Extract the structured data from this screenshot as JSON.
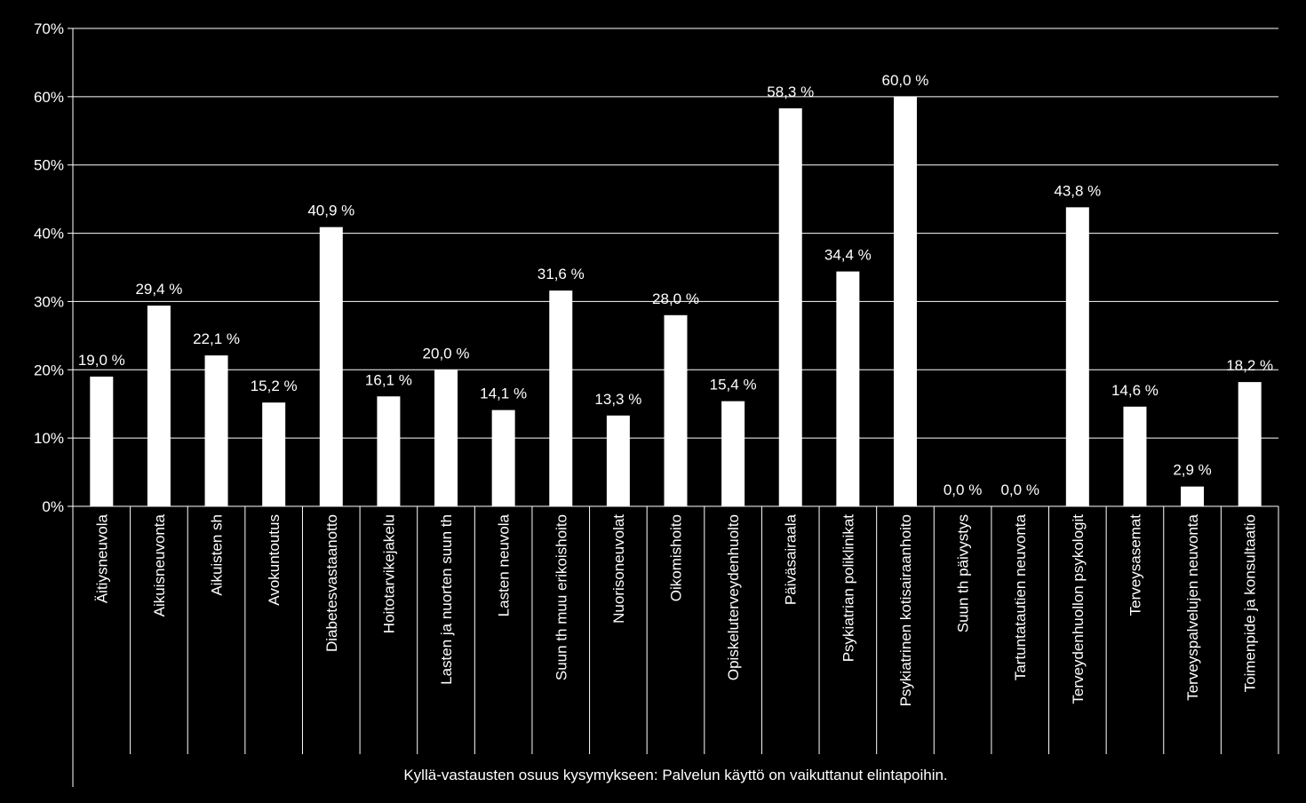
{
  "chart_data": {
    "type": "bar",
    "title": "",
    "ylabel": "",
    "xlabel": "Kyllä-vastausten osuus kysymykseen: Palvelun käyttö on vaikuttanut elintapoihin.",
    "ylim": [
      0,
      70
    ],
    "ytick_step": 10,
    "yticks": [
      "0%",
      "10%",
      "20%",
      "30%",
      "40%",
      "50%",
      "60%",
      "70%"
    ],
    "grid": true,
    "legend": "none",
    "categories": [
      "Äitiysneuvola",
      "Aikuisneuvonta",
      "Aikuisten sh",
      "Avokuntoutus",
      "Diabetesvastaanotto",
      "Hoitotarvikejakelu",
      "Lasten ja nuorten suun th",
      "Lasten neuvola",
      "Suun th muu erikoishoito",
      "Nuorisoneuvolat",
      "Oikomishoito",
      "Opiskeluterveydenhuolto",
      "Päiväsairaala",
      "Psykiatrian poliklinikat",
      "Psykiatrinen kotisairaanhoito",
      "Suun th päivystys",
      "Tartuntatautien neuvonta",
      "Terveydenhuollon psykologit",
      "Terveysasemat",
      "Terveyspalvelujen neuvonta",
      "Toimenpide ja konsultaatio"
    ],
    "values": [
      19.0,
      29.4,
      22.1,
      15.2,
      40.9,
      16.1,
      20.0,
      14.1,
      31.6,
      13.3,
      28.0,
      15.4,
      58.3,
      34.4,
      60.0,
      0.0,
      0.0,
      43.8,
      14.6,
      2.9,
      18.2
    ],
    "data_labels": [
      "19,0 %",
      "29,4 %",
      "22,1 %",
      "15,2 %",
      "40,9 %",
      "16,1 %",
      "20,0 %",
      "14,1 %",
      "31,6 %",
      "13,3 %",
      "28,0 %",
      "15,4 %",
      "58,3 %",
      "34,4 %",
      "60,0 %",
      "0,0 %",
      "0,0 %",
      "43,8 %",
      "14,6 %",
      "2,9 %",
      "18,2 %"
    ],
    "colors": {
      "background": "#000000",
      "bar": "#ffffff",
      "text": "#ffffff",
      "grid": "#ffffff"
    }
  }
}
